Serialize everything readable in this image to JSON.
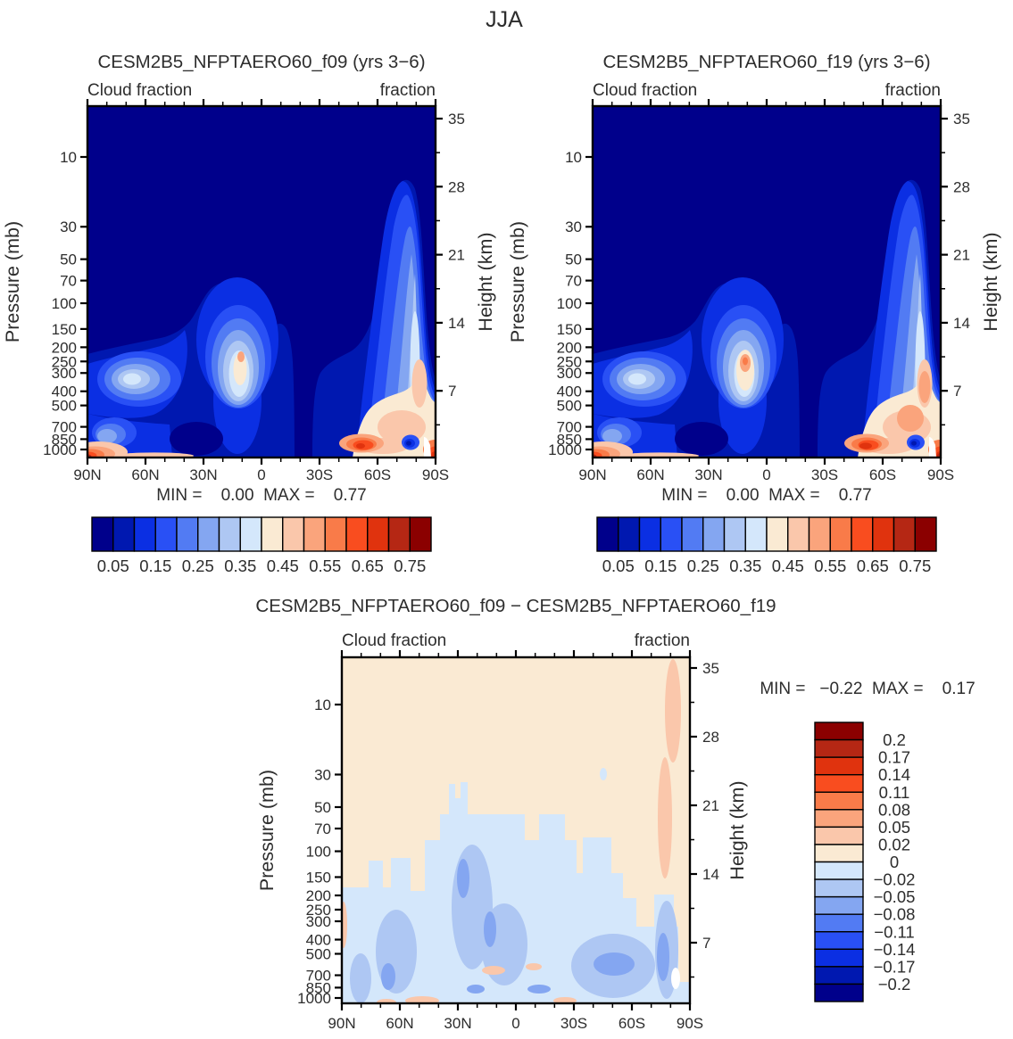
{
  "figure_title": "JJA",
  "palette": [
    "#00008B",
    "#0018B0",
    "#0B2FE3",
    "#2950F5",
    "#527BF3",
    "#84A6F1",
    "#AEC7F3",
    "#D4E7FB",
    "#FAEAD3",
    "#FAC7AB",
    "#FAA47C",
    "#F97B49",
    "#F94D1F",
    "#E0330E",
    "#B52714",
    "#8B0000"
  ],
  "axis": {
    "top_label_left": "Cloud fraction",
    "top_label_right": "fraction",
    "pressure_title": "Pressure (mb)",
    "height_title": "Height (km)",
    "pressure_ticks": [
      "10",
      "30",
      "50",
      "70",
      "100",
      "150",
      "200",
      "250",
      "300",
      "400",
      "500",
      "700",
      "850",
      "1000"
    ],
    "height_ticks": [
      "35",
      "28",
      "21",
      "14",
      "7"
    ],
    "lat_ticks": [
      "90N",
      "60N",
      "30N",
      "0",
      "30S",
      "60S",
      "90S"
    ]
  },
  "panels": [
    {
      "title": "CESM2B5_NFPTAERO60_f09 (yrs 3−6)",
      "minmax": "MIN =    0.00  MAX =    0.77"
    },
    {
      "title": "CESM2B5_NFPTAERO60_f19 (yrs 3−6)",
      "minmax": "MIN =    0.00  MAX =    0.77"
    },
    {
      "title": "CESM2B5_NFPTAERO60_f09 − CESM2B5_NFPTAERO60_f19",
      "minmax": "MIN =   −0.22  MAX =    0.17"
    }
  ],
  "colorbar_top_labels": [
    "0.05",
    "0.15",
    "0.25",
    "0.35",
    "0.45",
    "0.55",
    "0.65",
    "0.75"
  ],
  "colorbar_diff_labels": [
    "0.2",
    "0.17",
    "0.14",
    "0.11",
    "0.08",
    "0.05",
    "0.02",
    "0",
    "−0.02",
    "−0.05",
    "−0.08",
    "−0.11",
    "−0.14",
    "−0.17",
    "−0.2"
  ],
  "chart_data": [
    {
      "type": "filled_contour",
      "title": "CESM2B5_NFPTAERO60_f09 (yrs 3−6)",
      "season": "JJA",
      "variable": "Cloud fraction",
      "units": "fraction",
      "x_axis": {
        "ticks": [
          "90N",
          "60N",
          "30N",
          "0",
          "30S",
          "60S",
          "90S"
        ]
      },
      "y_axis_left": {
        "label": "Pressure (mb)",
        "scale": "log",
        "ticks": [
          10,
          30,
          50,
          70,
          100,
          150,
          200,
          250,
          300,
          400,
          500,
          700,
          850,
          1000
        ]
      },
      "y_axis_right": {
        "label": "Height (km)",
        "ticks": [
          35,
          28,
          21,
          14,
          7
        ]
      },
      "contour_levels": [
        0.05,
        0.1,
        0.15,
        0.2,
        0.25,
        0.3,
        0.35,
        0.4,
        0.45,
        0.5,
        0.55,
        0.6,
        0.65,
        0.7,
        0.75
      ],
      "min": 0.0,
      "max": 0.77,
      "legend_position": "horizontal colorbar below panel",
      "features": [
        "cloud fraction < 0.05 (dark navy) over most of the stratosphere and upper troposphere",
        "tropical high-cloud maximum (~0.45-0.77, pale/cream bullseye) near 150-300 mb just north of the equator",
        "boundary-layer maxima (>0.45, orange/red) near the surface poleward of 60N and around 60S",
        "enhanced cloud column (~0.1-0.35) along the 90S edge reaching ~28 km",
        "pale high-cloud patch (~0.3-0.45) near 60-70N at 300-500 mb"
      ]
    },
    {
      "type": "filled_contour",
      "title": "CESM2B5_NFPTAERO60_f19 (yrs 3−6)",
      "season": "JJA",
      "variable": "Cloud fraction",
      "units": "fraction",
      "x_axis": {
        "ticks": [
          "90N",
          "60N",
          "30N",
          "0",
          "30S",
          "60S",
          "90S"
        ]
      },
      "y_axis_left": {
        "label": "Pressure (mb)",
        "scale": "log",
        "ticks": [
          10,
          30,
          50,
          70,
          100,
          150,
          200,
          250,
          300,
          400,
          500,
          700,
          850,
          1000
        ]
      },
      "y_axis_right": {
        "label": "Height (km)",
        "ticks": [
          35,
          28,
          21,
          14,
          7
        ]
      },
      "contour_levels": [
        0.05,
        0.1,
        0.15,
        0.2,
        0.25,
        0.3,
        0.35,
        0.4,
        0.45,
        0.5,
        0.55,
        0.6,
        0.65,
        0.7,
        0.75
      ],
      "min": 0.0,
      "max": 0.77,
      "legend_position": "horizontal colorbar below panel",
      "features": [
        "very similar pattern to f09",
        "slightly stronger tropical upper-level maximum (larger cream/orange core near 200 mb)",
        "stronger surface maxima near 60S and at the 90S corner"
      ]
    },
    {
      "type": "filled_contour",
      "title": "CESM2B5_NFPTAERO60_f09 − CESM2B5_NFPTAERO60_f19",
      "season": "JJA",
      "variable": "Cloud fraction difference",
      "units": "fraction",
      "x_axis": {
        "ticks": [
          "90N",
          "60N",
          "30N",
          "0",
          "30S",
          "60S",
          "90S"
        ]
      },
      "y_axis_left": {
        "label": "Pressure (mb)",
        "scale": "log",
        "ticks": [
          10,
          30,
          50,
          70,
          100,
          150,
          200,
          250,
          300,
          400,
          500,
          700,
          850,
          1000
        ]
      },
      "y_axis_right": {
        "label": "Height (km)",
        "ticks": [
          35,
          28,
          21,
          14,
          7
        ]
      },
      "contour_levels": [
        -0.2,
        -0.17,
        -0.14,
        -0.11,
        -0.08,
        -0.05,
        -0.02,
        0,
        0.02,
        0.05,
        0.08,
        0.11,
        0.14,
        0.17,
        0.2
      ],
      "min": -0.22,
      "max": 0.17,
      "legend_position": "vertical colorbar right of panel",
      "features": [
        "weak positive differences (0 to +0.02, pale peach) over most upper levels",
        "negative differences (−0.02 to −0.08, light/medium blue) through the troposphere below ~100 mb",
        "strongest negatives (~−0.08 to −0.11) near 150-300 mb at 20-40N and near 400-850 mb around 50-70S",
        "narrow positive band (+0.02 to +0.05, salmon) along the 90S edge"
      ]
    }
  ]
}
